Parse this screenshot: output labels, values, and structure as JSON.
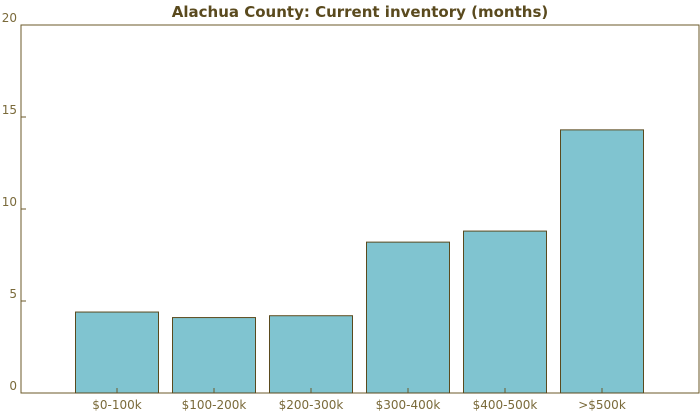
{
  "chart_data": {
    "type": "bar",
    "title": "Alachua County: Current inventory (months)",
    "xlabel": "",
    "ylabel": "",
    "categories": [
      "$0-100k",
      "$100-200k",
      "$200-300k",
      "$300-400k",
      "$400-500k",
      ">$500k"
    ],
    "values": [
      4.4,
      4.1,
      4.2,
      8.2,
      8.8,
      14.3
    ],
    "ylim": [
      0,
      20
    ],
    "yticks": [
      "0",
      "5",
      "10",
      "15",
      "20"
    ],
    "grid": false,
    "legend": "none"
  },
  "colors": {
    "bar_fill": "#80c4d0",
    "bar_stroke": "#5a4a1e",
    "axis": "#6b5a2a",
    "title": "#5a4a1e",
    "tick_text": "#7a6a3a"
  }
}
